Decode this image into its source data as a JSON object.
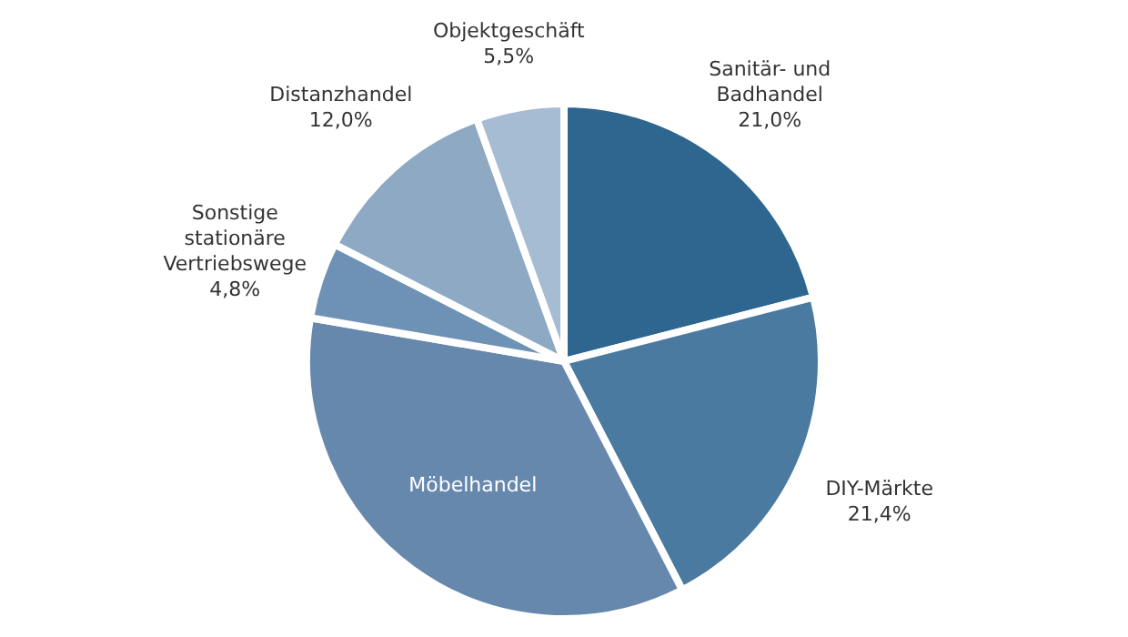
{
  "chart_data": {
    "type": "pie",
    "categories": [
      "Sanitär- und Badhandel",
      "DIY-Märkte",
      "Möbelhandel",
      "Sonstige stationäre Vertriebswege",
      "Distanzhandel",
      "Objektgeschäft"
    ],
    "values": [
      21.0,
      21.4,
      35.3,
      4.8,
      12.0,
      5.5
    ],
    "value_labels": [
      "21,0%",
      "21,4%",
      null,
      "4,8%",
      "12,0%",
      "5,5%"
    ],
    "colors": [
      "#2e6690",
      "#4b7aa0",
      "#6688ad",
      "#6e92b6",
      "#8ea9c4",
      "#a6bcd2"
    ],
    "legend": false
  }
}
